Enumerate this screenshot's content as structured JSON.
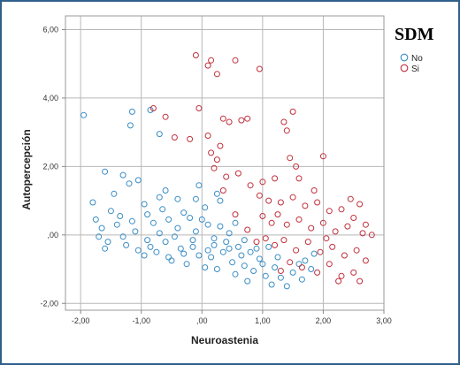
{
  "chart_data": {
    "type": "scatter",
    "xlabel": "Neuroastenia",
    "ylabel": "Autopercepción",
    "xlim": [
      -2.25,
      3.0
    ],
    "ylim": [
      -2.2,
      6.4
    ],
    "x_ticks": [
      "-2,00",
      "-1,00",
      ",00",
      "1,00",
      "2,00",
      "3,00"
    ],
    "x_tick_values": [
      -2,
      -1,
      0,
      1,
      2,
      3
    ],
    "y_ticks": [
      "-2,00",
      ",00",
      "2,00",
      "4,00",
      "6,00"
    ],
    "y_tick_values": [
      -2,
      0,
      2,
      4,
      6
    ],
    "grid": true,
    "legend": {
      "title": "SDM",
      "placement": "right"
    },
    "series": [
      {
        "name": "No",
        "color": "#3a8dc6",
        "points": [
          [
            -1.95,
            3.5
          ],
          [
            -1.15,
            3.6
          ],
          [
            -0.85,
            3.65
          ],
          [
            -1.18,
            3.2
          ],
          [
            -0.7,
            2.95
          ],
          [
            -1.6,
            1.85
          ],
          [
            -1.3,
            1.75
          ],
          [
            -1.05,
            1.6
          ],
          [
            -0.7,
            1.1
          ],
          [
            -0.4,
            1.05
          ],
          [
            -1.45,
            1.2
          ],
          [
            -1.2,
            1.5
          ],
          [
            -0.1,
            1.05
          ],
          [
            0.05,
            0.8
          ],
          [
            0.3,
            1.0
          ],
          [
            -1.8,
            0.95
          ],
          [
            -1.75,
            0.45
          ],
          [
            -1.65,
            0.2
          ],
          [
            -1.7,
            -0.05
          ],
          [
            -1.55,
            -0.2
          ],
          [
            -1.4,
            0.3
          ],
          [
            -1.5,
            0.7
          ],
          [
            -1.3,
            -0.05
          ],
          [
            -1.25,
            -0.3
          ],
          [
            -1.1,
            0.1
          ],
          [
            -1.05,
            -0.45
          ],
          [
            -0.95,
            -0.6
          ],
          [
            -0.9,
            0.6
          ],
          [
            -0.8,
            0.35
          ],
          [
            -0.75,
            -0.5
          ],
          [
            -0.6,
            -0.2
          ],
          [
            -0.55,
            0.45
          ],
          [
            -0.5,
            -0.75
          ],
          [
            -0.4,
            0.2
          ],
          [
            -0.35,
            -0.4
          ],
          [
            -0.25,
            -0.85
          ],
          [
            -0.2,
            0.5
          ],
          [
            -0.15,
            -0.15
          ],
          [
            -0.05,
            -0.6
          ],
          [
            0.05,
            -0.95
          ],
          [
            0.1,
            0.3
          ],
          [
            0.2,
            -0.3
          ],
          [
            0.25,
            -1.0
          ],
          [
            0.35,
            -0.5
          ],
          [
            0.45,
            0.05
          ],
          [
            0.5,
            -0.8
          ],
          [
            0.55,
            -1.15
          ],
          [
            0.6,
            -0.35
          ],
          [
            0.7,
            -0.9
          ],
          [
            0.75,
            -1.35
          ],
          [
            0.8,
            -0.5
          ],
          [
            0.85,
            -1.05
          ],
          [
            0.95,
            -0.7
          ],
          [
            1.05,
            -1.2
          ],
          [
            1.15,
            -1.45
          ],
          [
            1.2,
            -0.95
          ],
          [
            1.3,
            -1.25
          ],
          [
            1.4,
            -1.5
          ],
          [
            1.5,
            -1.1
          ],
          [
            1.6,
            -0.85
          ],
          [
            1.65,
            -1.3
          ],
          [
            1.7,
            -0.75
          ],
          [
            1.8,
            -1.0
          ],
          [
            1.85,
            -0.55
          ],
          [
            -0.9,
            -0.15
          ],
          [
            -0.7,
            0.05
          ],
          [
            -0.45,
            -0.05
          ],
          [
            -0.3,
            -0.55
          ],
          [
            -0.1,
            0.1
          ],
          [
            0.15,
            -0.65
          ],
          [
            0.4,
            -0.2
          ],
          [
            0.65,
            -0.6
          ],
          [
            0.9,
            -0.4
          ],
          [
            -1.15,
            0.4
          ],
          [
            -0.65,
            0.75
          ],
          [
            -0.3,
            0.65
          ],
          [
            0.0,
            0.45
          ],
          [
            0.3,
            0.25
          ],
          [
            -1.35,
            0.55
          ],
          [
            -0.85,
            -0.35
          ],
          [
            -0.55,
            -0.65
          ],
          [
            -0.15,
            -0.35
          ],
          [
            0.2,
            -0.1
          ],
          [
            0.45,
            -0.4
          ],
          [
            0.7,
            -0.15
          ],
          [
            1.0,
            -0.85
          ],
          [
            1.25,
            -0.65
          ],
          [
            -0.05,
            1.45
          ],
          [
            0.25,
            1.2
          ],
          [
            -0.6,
            1.3
          ],
          [
            -1.6,
            -0.4
          ],
          [
            -0.95,
            0.9
          ],
          [
            0.1,
            -0.45
          ],
          [
            0.55,
            0.35
          ],
          [
            1.1,
            -0.35
          ]
        ]
      },
      {
        "name": "Si",
        "color": "#c0303c",
        "points": [
          [
            -0.1,
            5.25
          ],
          [
            0.1,
            4.95
          ],
          [
            0.15,
            5.1
          ],
          [
            0.25,
            4.7
          ],
          [
            0.55,
            5.1
          ],
          [
            0.95,
            4.85
          ],
          [
            -0.8,
            3.7
          ],
          [
            -0.05,
            3.7
          ],
          [
            -0.6,
            3.45
          ],
          [
            0.35,
            3.4
          ],
          [
            0.45,
            3.3
          ],
          [
            0.65,
            3.35
          ],
          [
            0.75,
            3.4
          ],
          [
            -0.45,
            2.85
          ],
          [
            -0.2,
            2.8
          ],
          [
            0.1,
            2.9
          ],
          [
            0.3,
            2.6
          ],
          [
            1.5,
            3.6
          ],
          [
            1.35,
            3.3
          ],
          [
            1.4,
            3.05
          ],
          [
            0.15,
            2.4
          ],
          [
            0.25,
            2.2
          ],
          [
            0.2,
            1.95
          ],
          [
            0.4,
            1.7
          ],
          [
            0.6,
            1.8
          ],
          [
            0.8,
            1.45
          ],
          [
            1.0,
            1.55
          ],
          [
            1.2,
            1.65
          ],
          [
            1.45,
            2.25
          ],
          [
            1.55,
            2.0
          ],
          [
            1.6,
            1.65
          ],
          [
            2.0,
            2.3
          ],
          [
            0.95,
            1.15
          ],
          [
            1.1,
            1.0
          ],
          [
            1.3,
            0.95
          ],
          [
            1.5,
            1.1
          ],
          [
            1.7,
            0.85
          ],
          [
            1.9,
            0.95
          ],
          [
            2.1,
            0.7
          ],
          [
            2.3,
            0.75
          ],
          [
            2.5,
            0.5
          ],
          [
            2.6,
            0.9
          ],
          [
            1.0,
            0.55
          ],
          [
            1.15,
            0.35
          ],
          [
            1.25,
            0.6
          ],
          [
            1.4,
            0.3
          ],
          [
            1.6,
            0.45
          ],
          [
            1.8,
            0.2
          ],
          [
            2.0,
            0.35
          ],
          [
            2.2,
            0.1
          ],
          [
            2.4,
            0.25
          ],
          [
            2.65,
            0.05
          ],
          [
            2.8,
            0.0
          ],
          [
            1.05,
            -0.1
          ],
          [
            1.2,
            -0.3
          ],
          [
            1.35,
            -0.15
          ],
          [
            1.55,
            -0.45
          ],
          [
            1.75,
            -0.2
          ],
          [
            1.95,
            -0.5
          ],
          [
            2.15,
            -0.35
          ],
          [
            2.35,
            -0.6
          ],
          [
            2.55,
            -0.45
          ],
          [
            2.7,
            -0.75
          ],
          [
            1.45,
            -0.8
          ],
          [
            1.65,
            -0.95
          ],
          [
            1.9,
            -1.1
          ],
          [
            2.1,
            -0.85
          ],
          [
            2.3,
            -1.2
          ],
          [
            2.5,
            -1.1
          ],
          [
            2.6,
            -1.35
          ],
          [
            2.25,
            -1.35
          ],
          [
            0.9,
            -0.2
          ],
          [
            0.75,
            0.15
          ],
          [
            0.55,
            0.6
          ],
          [
            0.35,
            1.3
          ],
          [
            1.85,
            1.3
          ],
          [
            2.45,
            1.05
          ],
          [
            2.05,
            -0.1
          ],
          [
            2.7,
            0.3
          ],
          [
            1.3,
            -1.05
          ]
        ]
      }
    ]
  }
}
